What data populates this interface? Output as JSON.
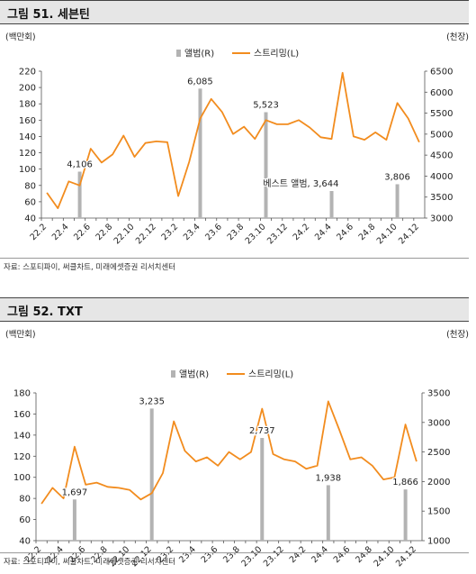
{
  "figures": [
    {
      "title": "그림 51. 세븐틴",
      "source": "자료: 스포티파이, 써클차트, 미래에셋증권 리서치센터"
    },
    {
      "title": "그림 52. TXT",
      "source": "자료: 스포티파이, 써클차트, 미래에셋증권 리서치센터"
    }
  ],
  "colors": {
    "bar": "#b3b3b3",
    "line": "#f28c1e",
    "header_bg": "#e6e6e6"
  },
  "chart_data": [
    {
      "type": "bar+line",
      "left_unit": "(백만회)",
      "right_unit": "(천장)",
      "legend_position": "top-center",
      "categories": [
        "22.2",
        "22.3",
        "22.4",
        "22.5",
        "22.6",
        "22.7",
        "22.8",
        "22.9",
        "22.10",
        "22.11",
        "22.12",
        "23.1",
        "23.2",
        "23.3",
        "23.4",
        "23.5",
        "23.6",
        "23.7",
        "23.8",
        "23.9",
        "23.10",
        "23.11",
        "23.12",
        "24.1",
        "24.2",
        "24.3",
        "24.4",
        "24.5",
        "24.6",
        "24.7",
        "24.8",
        "24.9",
        "24.10",
        "24.11",
        "24.12"
      ],
      "tick_labels": [
        "22.2",
        "22.4",
        "22.6",
        "22.8",
        "22.10",
        "22.12",
        "23.2",
        "23.4",
        "23.6",
        "23.8",
        "23.10",
        "23.12",
        "24.2",
        "24.4",
        "24.6",
        "24.8",
        "24.10",
        "24.12"
      ],
      "y_left": {
        "min": 40,
        "max": 220,
        "ticks": [
          40,
          60,
          80,
          100,
          120,
          140,
          160,
          180,
          200,
          220
        ]
      },
      "y_right": {
        "min": 3000,
        "max": 6500,
        "ticks": [
          3000,
          3500,
          4000,
          4500,
          5000,
          5500,
          6000,
          6500
        ]
      },
      "series": [
        {
          "name": "앨범(R)",
          "axis": "right",
          "kind": "bar",
          "points": [
            {
              "x": "22.5",
              "value": 4106,
              "label": "4,106"
            },
            {
              "x": "23.4",
              "value": 6085,
              "label": "6,085"
            },
            {
              "x": "23.10",
              "value": 5523,
              "label": "5,523"
            },
            {
              "x": "24.4",
              "value": 3644,
              "label": "베스트 앨범, 3,644"
            },
            {
              "x": "24.10",
              "value": 3806,
              "label": "3,806"
            }
          ]
        },
        {
          "name": "스트리밍(L)",
          "axis": "left",
          "kind": "line",
          "values": [
            71,
            52,
            85,
            80,
            125,
            108,
            118,
            141,
            115,
            132,
            134,
            133,
            67,
            109,
            162,
            186,
            170,
            143,
            152,
            137,
            160,
            155,
            155,
            160,
            151,
            139,
            137,
            218,
            140,
            136,
            145,
            136,
            181,
            162,
            133
          ]
        }
      ]
    },
    {
      "type": "bar+line",
      "left_unit": "(백만회)",
      "right_unit": "(천장)",
      "legend_position": "top-center",
      "categories": [
        "22.2",
        "22.3",
        "22.4",
        "22.5",
        "22.6",
        "22.7",
        "22.8",
        "22.9",
        "22.10",
        "22.11",
        "22.12",
        "23.1",
        "23.2",
        "23.3",
        "23.4",
        "23.5",
        "23.6",
        "23.7",
        "23.8",
        "23.9",
        "23.10",
        "23.11",
        "23.12",
        "24.1",
        "24.2",
        "24.3",
        "24.4",
        "24.5",
        "24.6",
        "24.7",
        "24.8",
        "24.9",
        "24.10",
        "24.11",
        "24.12"
      ],
      "tick_labels": [
        "22.2",
        "22.4",
        "22.6",
        "22.8",
        "22.10",
        "22.12",
        "23.2",
        "23.4",
        "23.6",
        "23.8",
        "23.10",
        "23.12",
        "24.2",
        "24.4",
        "24.6",
        "24.8",
        "24.10",
        "24.12"
      ],
      "y_left": {
        "min": 40,
        "max": 180,
        "ticks": [
          40,
          60,
          80,
          100,
          120,
          140,
          160,
          180
        ]
      },
      "y_right": {
        "min": 1000,
        "max": 3500,
        "ticks": [
          1000,
          1500,
          2000,
          2500,
          3000,
          3500
        ]
      },
      "series": [
        {
          "name": "앨범(R)",
          "axis": "right",
          "kind": "bar",
          "points": [
            {
              "x": "22.5",
              "value": 1697,
              "label": "1,697"
            },
            {
              "x": "22.12",
              "value": 3235,
              "label": "3,235"
            },
            {
              "x": "23.10",
              "value": 2737,
              "label": "2,737"
            },
            {
              "x": "24.4",
              "value": 1938,
              "label": "1,938"
            },
            {
              "x": "24.11",
              "value": 1866,
              "label": "1,866"
            }
          ]
        },
        {
          "name": "스트리밍(L)",
          "axis": "left",
          "kind": "line",
          "values": [
            75,
            90,
            80,
            129,
            93,
            95,
            91,
            90,
            88,
            79,
            85,
            104,
            153,
            125,
            115,
            119,
            111,
            124,
            117,
            124,
            165,
            122,
            117,
            115,
            108,
            111,
            172,
            145,
            117,
            119,
            111,
            98,
            100,
            150,
            115
          ]
        }
      ]
    }
  ]
}
